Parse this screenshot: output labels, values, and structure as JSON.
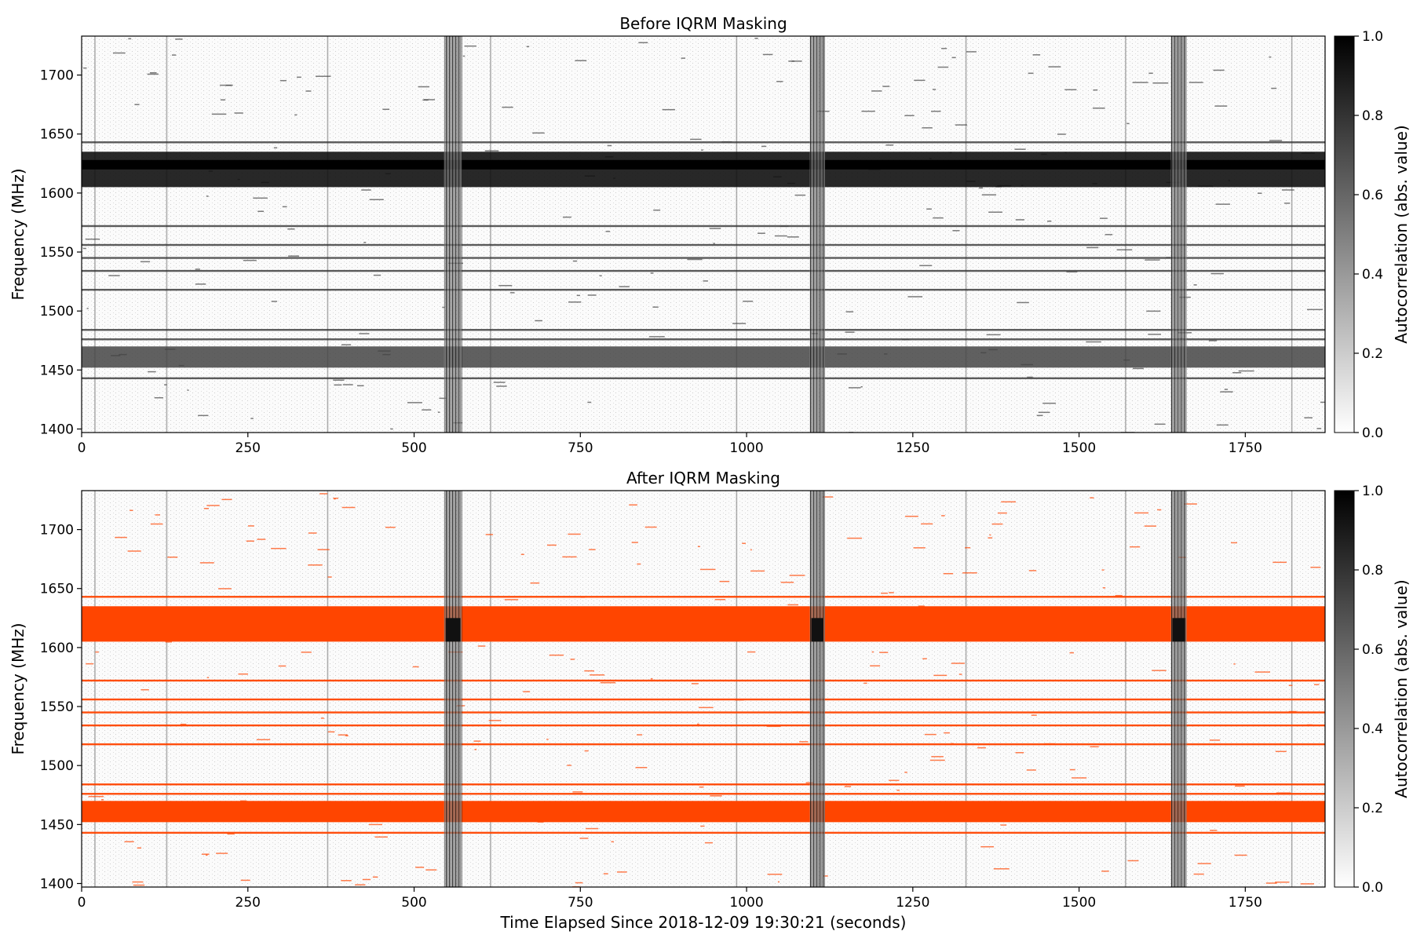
{
  "chart_data": [
    {
      "type": "heatmap",
      "title": "Before IQRM Masking",
      "xlabel": "",
      "ylabel": "Frequency (MHz)",
      "xlim": [
        0,
        1870
      ],
      "ylim": [
        1397,
        1733
      ],
      "x_ticks": [
        0,
        250,
        500,
        750,
        1000,
        1250,
        1500,
        1750
      ],
      "y_ticks": [
        1400,
        1450,
        1500,
        1550,
        1600,
        1650,
        1700
      ],
      "colorbar": {
        "label": "Autocorrelation (abs. value)",
        "range": [
          0,
          1
        ],
        "ticks": [
          0.0,
          0.2,
          0.4,
          0.6,
          0.8,
          1.0
        ],
        "colormap": "gray_r"
      },
      "masked_color": null,
      "strong_frequency_bands_mhz": [
        [
          1605,
          1635
        ],
        [
          1452,
          1470
        ]
      ],
      "narrow_frequency_lines_mhz": [
        1556,
        1534,
        1545,
        1484,
        1476,
        1443,
        1518,
        1572,
        1643
      ],
      "broadband_time_s": [
        [
          545,
          572
        ],
        [
          1095,
          1118
        ],
        [
          1638,
          1662
        ]
      ],
      "faint_vertical_lines_s": [
        20,
        128,
        370,
        615,
        985,
        1330,
        1570,
        1820
      ]
    },
    {
      "type": "heatmap",
      "title": "After IQRM Masking",
      "xlabel": "Time Elapsed Since 2018-12-09 19:30:21 (seconds)",
      "ylabel": "Frequency (MHz)",
      "xlim": [
        0,
        1870
      ],
      "ylim": [
        1397,
        1733
      ],
      "x_ticks": [
        0,
        250,
        500,
        750,
        1000,
        1250,
        1500,
        1750
      ],
      "y_ticks": [
        1400,
        1450,
        1500,
        1550,
        1600,
        1650,
        1700
      ],
      "colorbar": {
        "label": "Autocorrelation (abs. value)",
        "range": [
          0,
          1
        ],
        "ticks": [
          0.0,
          0.2,
          0.4,
          0.6,
          0.8,
          1.0
        ],
        "colormap": "gray_r"
      },
      "masked_color": "#ff4500",
      "strong_frequency_bands_mhz": [
        [
          1605,
          1635
        ],
        [
          1452,
          1470
        ]
      ],
      "narrow_frequency_lines_mhz": [
        1556,
        1534,
        1545,
        1484,
        1476,
        1443,
        1518,
        1572,
        1643
      ],
      "broadband_time_s": [
        [
          545,
          572
        ],
        [
          1095,
          1118
        ],
        [
          1638,
          1662
        ]
      ],
      "faint_vertical_lines_s": [
        20,
        128,
        370,
        615,
        985,
        1330,
        1570,
        1820
      ]
    }
  ]
}
